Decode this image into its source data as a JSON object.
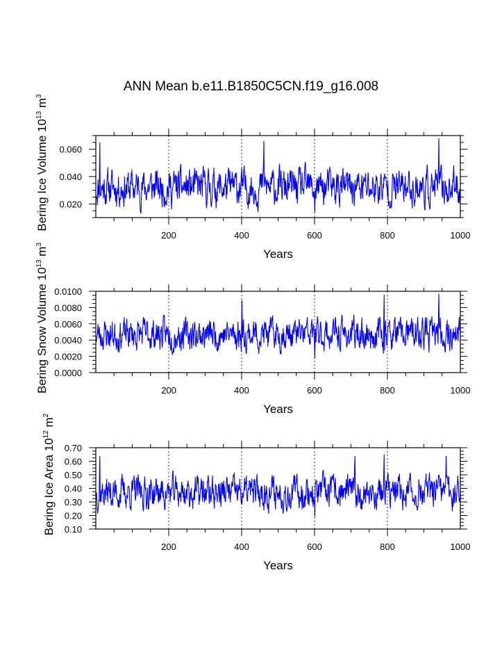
{
  "title": "ANN Mean b.e11.B1850C5CN.f19_g16.008",
  "line_color": "#0000ff",
  "chart_data": [
    {
      "type": "line",
      "xlabel": "Years",
      "ylabel": "Bering Ice Volume 10^13 m^3",
      "ylabel_parts": {
        "main": "Bering Ice Volume 10",
        "exp1": "13",
        "mid": " m",
        "exp2": "3"
      },
      "xlim": [
        0,
        1000
      ],
      "ylim": [
        0.01,
        0.07
      ],
      "xticks": [
        200,
        400,
        600,
        800,
        1000
      ],
      "xtick_labels": [
        "200",
        "400",
        "600",
        "800",
        "1000"
      ],
      "yticks": [
        0.02,
        0.04,
        0.06
      ],
      "ytick_labels": [
        "0.020",
        "0.040",
        "0.060"
      ],
      "grid": "vertical dashed at major x ticks",
      "series": [
        {
          "base": 0.032,
          "amp": 0.011,
          "seed": 11,
          "peaks": [
            [
              10,
              0.065
            ],
            [
              460,
              0.066
            ],
            [
              940,
              0.068
            ],
            [
              600,
              0.014
            ]
          ]
        }
      ]
    },
    {
      "type": "line",
      "xlabel": "Years",
      "ylabel": "Bering Snow Volume 10^13 m^3",
      "ylabel_parts": {
        "main": "Bering Snow Volume 10",
        "exp1": "13",
        "mid": " m",
        "exp2": "3"
      },
      "xlim": [
        0,
        1000
      ],
      "ylim": [
        0.0,
        0.01
      ],
      "xticks": [
        200,
        400,
        600,
        800,
        1000
      ],
      "xtick_labels": [
        "200",
        "400",
        "600",
        "800",
        "1000"
      ],
      "yticks": [
        0.0,
        0.002,
        0.004,
        0.006,
        0.008,
        0.01
      ],
      "ytick_labels": [
        "0.0000",
        "0.0020",
        "0.0040",
        "0.0060",
        "0.0080",
        "0.0100"
      ],
      "grid": "vertical dashed at major x ticks",
      "series": [
        {
          "base": 0.0047,
          "amp": 0.0016,
          "seed": 23,
          "peaks": [
            [
              400,
              0.0089
            ],
            [
              790,
              0.0096
            ],
            [
              940,
              0.0097
            ],
            [
              600,
              0.0018
            ]
          ]
        }
      ]
    },
    {
      "type": "line",
      "xlabel": "Years",
      "ylabel": "Bering Ice Area 10^12 m^2",
      "ylabel_parts": {
        "main": "Bering Ice Area 10",
        "exp1": "12",
        "mid": " m",
        "exp2": "2"
      },
      "xlim": [
        0,
        1000
      ],
      "ylim": [
        0.1,
        0.7
      ],
      "xticks": [
        200,
        400,
        600,
        800,
        1000
      ],
      "xtick_labels": [
        "200",
        "400",
        "600",
        "800",
        "1000"
      ],
      "yticks": [
        0.1,
        0.2,
        0.3,
        0.4,
        0.5,
        0.6,
        0.7
      ],
      "ytick_labels": [
        "0.10",
        "0.20",
        "0.30",
        "0.40",
        "0.50",
        "0.60",
        "0.70"
      ],
      "grid": "vertical dashed at major x ticks",
      "series": [
        {
          "base": 0.37,
          "amp": 0.1,
          "seed": 37,
          "peaks": [
            [
              10,
              0.64
            ],
            [
              710,
              0.64
            ],
            [
              790,
              0.65
            ],
            [
              960,
              0.64
            ],
            [
              600,
              0.19
            ]
          ]
        }
      ]
    }
  ]
}
